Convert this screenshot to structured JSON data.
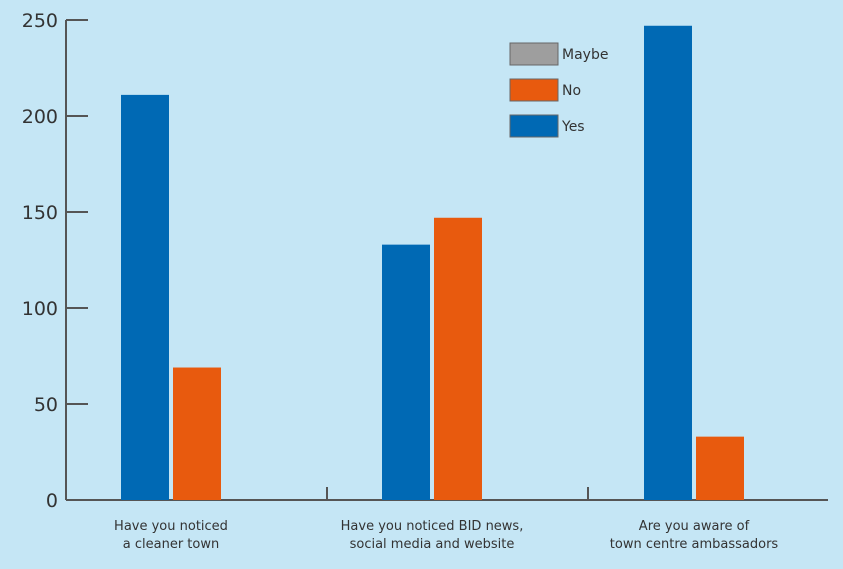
{
  "chart_data": {
    "type": "bar",
    "title": "",
    "xlabel": "",
    "ylabel": "",
    "ylim": [
      0,
      250
    ],
    "yticks": [
      0,
      50,
      100,
      150,
      200,
      250
    ],
    "grid": false,
    "legend_position": "top-right",
    "categories": [
      [
        "Have you noticed",
        "a cleaner town"
      ],
      [
        "Have you noticed BID news,",
        "social media and website"
      ],
      [
        "Are you aware of",
        "town centre ambassadors"
      ]
    ],
    "series": [
      {
        "name": "Yes",
        "color": "#0069b4",
        "values": [
          211,
          133,
          247
        ]
      },
      {
        "name": "No",
        "color": "#e85a0e",
        "values": [
          69,
          147,
          33
        ]
      },
      {
        "name": "Maybe",
        "color": "#9e9e9e",
        "values": [
          0,
          0,
          0
        ]
      }
    ],
    "legend": [
      {
        "name": "Maybe",
        "color": "#9e9e9e"
      },
      {
        "name": "No",
        "color": "#e85a0e"
      },
      {
        "name": "Yes",
        "color": "#0069b4"
      }
    ],
    "colors": {
      "background": "#c5e6f5",
      "axis": "#555555",
      "text": "#333333"
    }
  }
}
